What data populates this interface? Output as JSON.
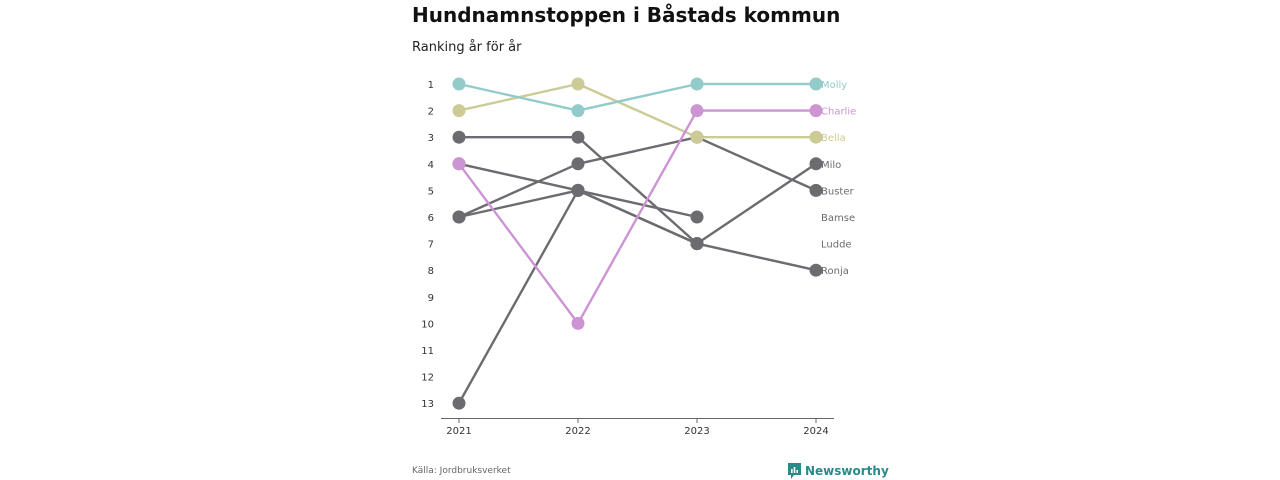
{
  "title": "Hundnamnstoppen i Båstads kommun",
  "subtitle": "Ranking år för år",
  "source": "Källa: Jordbruksverket",
  "brand": {
    "name": "Newsworthy",
    "color": "#2a8a8a",
    "logo_icon": "newsworthy-logo-icon"
  },
  "chart_data": {
    "type": "line",
    "title": "Hundnamnstoppen i Båstads kommun",
    "subtitle": "Ranking år för år",
    "x": [
      "2021",
      "2022",
      "2023",
      "2024"
    ],
    "y_ticks": [
      "1",
      "2",
      "3",
      "4",
      "5",
      "6",
      "7",
      "8",
      "9",
      "10",
      "11",
      "12",
      "13"
    ],
    "ylim": [
      1,
      13.6
    ],
    "y_reversed": true,
    "grid": false,
    "series": [
      {
        "name": "Ronja",
        "values": [
          4,
          5,
          7,
          8
        ],
        "color": "#6b6b70"
      },
      {
        "name": "Ludde",
        "values": [
          3,
          3,
          7,
          null
        ],
        "color": "#6b6b70"
      },
      {
        "name": "Bamse",
        "values": [
          6,
          5,
          6,
          null
        ],
        "color": "#6b6b70"
      },
      {
        "name": "Buster",
        "values": [
          6,
          4,
          3,
          5
        ],
        "color": "#6b6b70"
      },
      {
        "name": "Milo",
        "values": [
          13,
          5,
          7,
          4
        ],
        "color": "#6b6b70"
      },
      {
        "name": "Bella",
        "values": [
          2,
          1,
          3,
          3
        ],
        "color": "#cccb96"
      },
      {
        "name": "Charlie",
        "values": [
          4,
          10,
          2,
          2
        ],
        "color": "#cc94d2"
      },
      {
        "name": "Molly",
        "values": [
          1,
          2,
          1,
          1
        ],
        "color": "#93cbcb"
      }
    ],
    "end_labels": [
      {
        "name": "Molly",
        "rank": 1,
        "color": "#93cbcb"
      },
      {
        "name": "Charlie",
        "rank": 2,
        "color": "#cc94d2"
      },
      {
        "name": "Bella",
        "rank": 3,
        "color": "#cccb96"
      },
      {
        "name": "Milo",
        "rank": 4,
        "color": "#6b6b70"
      },
      {
        "name": "Buster",
        "rank": 5,
        "color": "#6b6b70"
      },
      {
        "name": "Bamse",
        "rank": 6,
        "color": "#6b6b70"
      },
      {
        "name": "Ludde",
        "rank": 7,
        "color": "#6b6b70"
      },
      {
        "name": "Ronja",
        "rank": 8,
        "color": "#6b6b70"
      }
    ]
  }
}
